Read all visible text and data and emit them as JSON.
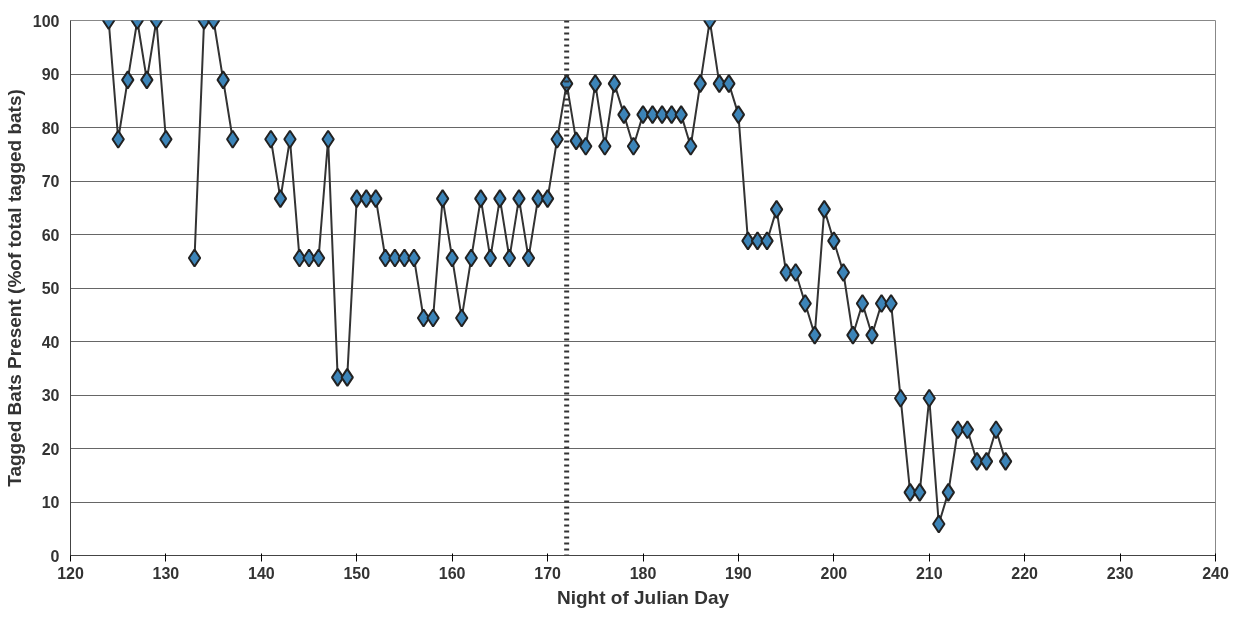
{
  "chart_data": {
    "type": "line",
    "xlabel": "Night of Julian Day",
    "ylabel": "Tagged Bats Present (%of total tagged bats)",
    "xlim": [
      120,
      240
    ],
    "xticks": [
      120,
      130,
      140,
      150,
      160,
      170,
      180,
      190,
      200,
      210,
      220,
      230,
      240
    ],
    "ylim": [
      0,
      100
    ],
    "yticks": [
      0,
      10,
      20,
      30,
      40,
      50,
      60,
      70,
      80,
      90,
      100
    ],
    "grid": "y",
    "marker": "diamond",
    "line_style": "solid",
    "x": [
      124,
      125,
      126,
      127,
      128,
      129,
      130,
      131,
      132,
      133,
      134,
      135,
      136,
      137,
      138,
      139,
      140,
      141,
      142,
      143,
      144,
      145,
      146,
      147,
      148,
      149,
      150,
      151,
      152,
      153,
      154,
      155,
      156,
      157,
      158,
      159,
      160,
      161,
      162,
      163,
      164,
      165,
      166,
      167,
      168,
      169,
      170,
      171,
      172,
      173,
      174,
      175,
      176,
      177,
      178,
      179,
      180,
      181,
      182,
      183,
      184,
      185,
      186,
      187,
      188,
      189,
      190,
      191,
      192,
      193,
      194,
      195,
      196,
      197,
      198,
      199,
      200,
      201,
      202,
      203,
      204,
      205,
      206,
      207,
      208,
      209,
      210,
      211,
      212,
      213,
      214,
      215,
      216,
      217,
      218
    ],
    "series": [
      {
        "color": "#3c84b8",
        "values": [
          100,
          77.8,
          88.9,
          100,
          88.9,
          100,
          77.8,
          null,
          null,
          55.6,
          100,
          100,
          88.9,
          77.8,
          null,
          null,
          null,
          77.8,
          66.7,
          77.8,
          55.6,
          55.6,
          55.6,
          77.8,
          33.3,
          33.3,
          66.7,
          66.7,
          66.7,
          55.6,
          55.6,
          55.6,
          55.6,
          44.4,
          44.4,
          66.7,
          55.6,
          44.4,
          55.6,
          66.7,
          55.6,
          66.7,
          55.6,
          66.7,
          55.6,
          66.7,
          66.7,
          77.8,
          88.2,
          77.5,
          76.5,
          88.2,
          76.5,
          88.2,
          82.4,
          76.5,
          82.4,
          82.4,
          82.4,
          82.4,
          82.4,
          76.5,
          88.2,
          100,
          88.2,
          88.2,
          82.4,
          58.8,
          58.8,
          58.8,
          64.7,
          52.9,
          52.9,
          47.1,
          41.2,
          64.7,
          58.8,
          52.9,
          41.2,
          47.1,
          41.2,
          47.1,
          47.1,
          29.4,
          11.8,
          11.8,
          29.4,
          5.9,
          11.8,
          23.5,
          23.5,
          17.6,
          17.6,
          23.5,
          17.6
        ]
      }
    ],
    "ref_lines": [
      {
        "axis": "x",
        "value": 172,
        "color": "#333333",
        "line_style": "dotted"
      }
    ]
  }
}
